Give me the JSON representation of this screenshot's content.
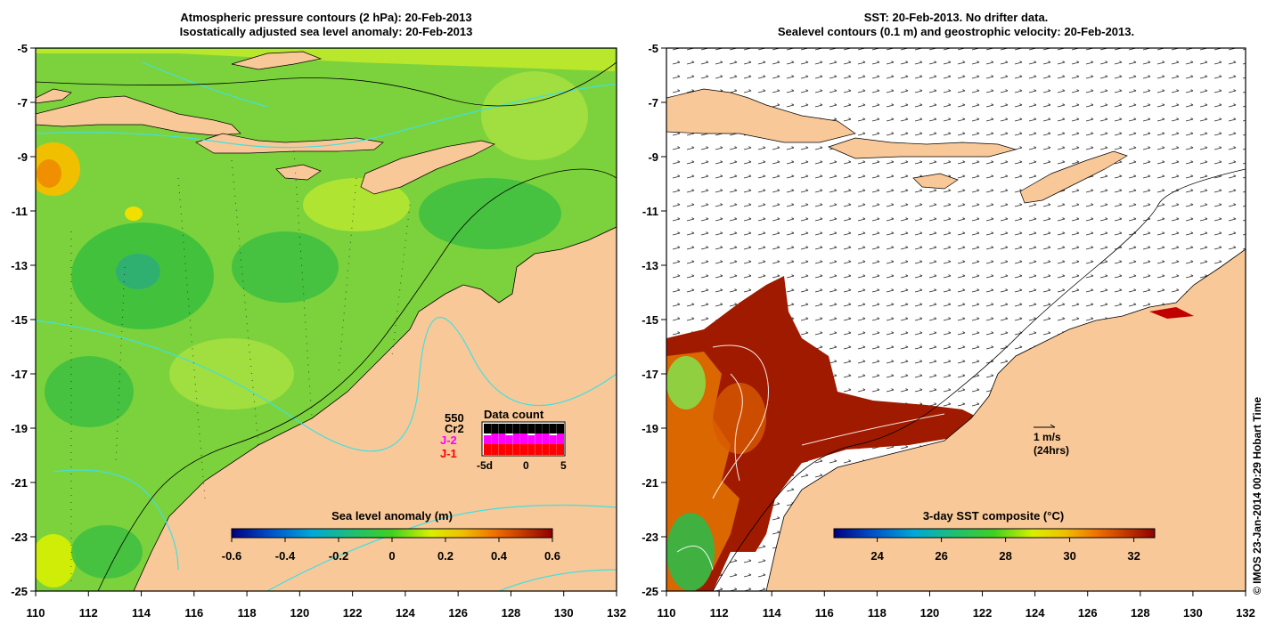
{
  "left_panel": {
    "title_line1": "Atmospheric pressure contours (2 hPa): 20-Feb-2013",
    "title_line2": "Isostatically adjusted sea level anomaly: 20-Feb-2013",
    "colorbar": {
      "label": "Sea level anomaly (m)",
      "ticks": [
        "-0.6",
        "-0.4",
        "-0.2",
        "0",
        "0.2",
        "0.4",
        "0.6"
      ],
      "colors": [
        "#000080",
        "#0050c8",
        "#00a0d0",
        "#20c080",
        "#40c040",
        "#a0e040",
        "#f0f000",
        "#f0a000",
        "#d05000",
        "#900000"
      ]
    },
    "data_count": {
      "title": "Data count",
      "max_label": "550",
      "missions": [
        "Cr2",
        "J-2",
        "J-1"
      ],
      "mission_colors": [
        "#000000",
        "#ff00ff",
        "#ff0000"
      ],
      "ticks": [
        "-5d",
        "0",
        "5"
      ]
    }
  },
  "right_panel": {
    "title_line1": "SST: 20-Feb-2013. No drifter data.",
    "title_line2": "Sealevel contours (0.1 m) and geostrophic velocity: 20-Feb-2013.",
    "colorbar": {
      "label": "3-day SST composite (°C)",
      "ticks": [
        "24",
        "26",
        "28",
        "30",
        "32"
      ],
      "colors": [
        "#000080",
        "#0050c8",
        "#00a0d0",
        "#20c080",
        "#40c040",
        "#a0e040",
        "#f0f000",
        "#f0a000",
        "#d05000",
        "#900000"
      ]
    },
    "velocity_scale": {
      "label_line1": "1 m/s",
      "label_line2": "(24hrs)"
    }
  },
  "axes": {
    "x_ticks": [
      "110",
      "112",
      "114",
      "116",
      "118",
      "120",
      "122",
      "124",
      "126",
      "128",
      "130",
      "132"
    ],
    "y_ticks": [
      "-5",
      "-7",
      "-9",
      "-11",
      "-13",
      "-15",
      "-17",
      "-19",
      "-21",
      "-23",
      "-25"
    ]
  },
  "credit": "© IMOS 23-Jan-2014 00:29 Hobart Time",
  "colors": {
    "land": "#f9c898",
    "ocean_green": "#7cd23c",
    "sst_red": "#a01a00",
    "isobar_cyan": "#40e0e0"
  }
}
